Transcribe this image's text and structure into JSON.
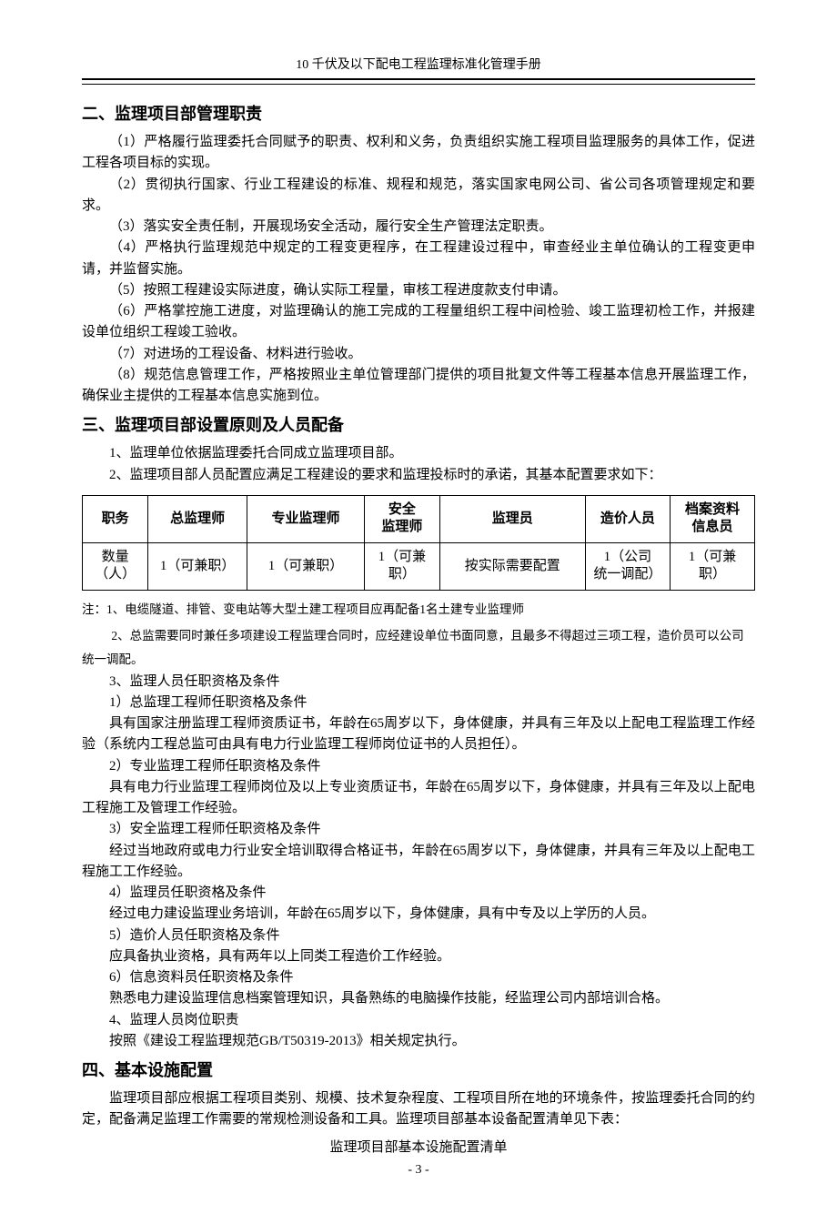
{
  "header": {
    "title": "10 千伏及以下配电工程监理标准化管理手册"
  },
  "sec2": {
    "heading": "二、监理项目部管理职责",
    "p1": "（1）严格履行监理委托合同赋予的职责、权利和义务，负责组织实施工程项目监理服务的具体工作，促进工程各项目标的实现。",
    "p2": "（2）贯彻执行国家、行业工程建设的标准、规程和规范，落实国家电网公司、省公司各项管理规定和要求。",
    "p3": "（3）落实安全责任制，开展现场安全活动，履行安全生产管理法定职责。",
    "p4": "（4）严格执行监理规范中规定的工程变更程序，在工程建设过程中，审查经业主单位确认的工程变更申请，并监督实施。",
    "p5": "（5）按照工程建设实际进度，确认实际工程量，审核工程进度款支付申请。",
    "p6": "（6）严格掌控施工进度，对监理确认的施工完成的工程量组织工程中间检验、竣工监理初检工作，并报建设单位组织工程竣工验收。",
    "p7": "（7）对进场的工程设备、材料进行验收。",
    "p8": "（8）规范信息管理工作，严格按照业主单位管理部门提供的项目批复文件等工程基本信息开展监理工作，确保业主提供的工程基本信息实施到位。"
  },
  "sec3": {
    "heading": "三、监理项目部设置原则及人员配备",
    "p1": "1、监理单位依据监理委托合同成立监理项目部。",
    "p2": "2、监理项目部人员配置应满足工程建设的要求和监理投标时的承诺，其基本配置要求如下：",
    "table": {
      "headers": [
        "职务",
        "总监理师",
        "专业监理师",
        "安全\n监理师",
        "监理员",
        "造价人员",
        "档案资料\n信息员"
      ],
      "row_label": "数量\n（人）",
      "cells": [
        "1（可兼职）",
        "1（可兼职）",
        "1（可兼\n职）",
        "按实际需要配置",
        "1（公司\n统一调配）",
        "1（可兼\n职）"
      ],
      "col_widths": [
        "70px",
        "105px",
        "125px",
        "80px",
        "155px",
        "90px",
        "90px"
      ]
    },
    "note1": "注：1、电缆隧道、排管、变电站等大型土建工程项目应再配备1名土建专业监理师",
    "note2": "2、总监需要同时兼任多项建设工程监理合同时，应经建设单位书面同意，且最多不得超过三项工程，造价员可以公司统一调配。",
    "p3": "3、监理人员任职资格及条件",
    "q1h": "1）总监理工程师任职资格及条件",
    "q1b": "具有国家注册监理工程师资质证书，年龄在65周岁以下，身体健康，并具有三年及以上配电工程监理工作经验（系统内工程总监可由具有电力行业监理工程师岗位证书的人员担任）。",
    "q2h": "2）专业监理工程师任职资格及条件",
    "q2b": "具有电力行业监理工程师岗位及以上专业资质证书，年龄在65周岁以下，身体健康，并具有三年及以上配电工程施工及管理工作经验。",
    "q3h": "3）安全监理工程师任职资格及条件",
    "q3b": "经过当地政府或电力行业安全培训取得合格证书，年龄在65周岁以下，身体健康，并具有三年及以上配电工程施工工作经验。",
    "q4h": "4）监理员任职资格及条件",
    "q4b": "经过电力建设监理业务培训，年龄在65周岁以下，身体健康，具有中专及以上学历的人员。",
    "q5h": "5）造价人员任职资格及条件",
    "q5b": "应具备执业资格，具有两年以上同类工程造价工作经验。",
    "q6h": "6）信息资料员任职资格及条件",
    "q6b": "熟悉电力建设监理信息档案管理知识，具备熟练的电脑操作技能，经监理公司内部培训合格。",
    "p4": "4、监理人员岗位职责",
    "p4b": "按照《建设工程监理规范GB/T50319-2013》相关规定执行。"
  },
  "sec4": {
    "heading": "四、基本设施配置",
    "p1": "监理项目部应根据工程项目类别、规模、技术复杂程度、工程项目所在地的环境条件，按监理委托合同的约定，配备满足监理工作需要的常规检测设备和工具。监理项目部基本设备配置清单见下表：",
    "subtitle": "监理项目部基本设施配置清单"
  },
  "footer": {
    "page_num": "- 3 -"
  }
}
